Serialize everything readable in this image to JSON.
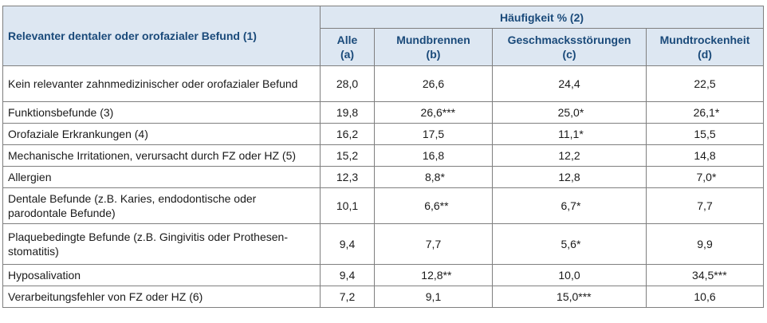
{
  "table": {
    "row_header": "Relevanter dentaler oder orofazialer Befund (1)",
    "group_header": "Häufigkeit % (2)",
    "columns": [
      {
        "name": "Alle",
        "code": "(a)"
      },
      {
        "name": "Mundbrennen",
        "code": "(b)"
      },
      {
        "name": "Geschmacksstörungen",
        "code": "(c)"
      },
      {
        "name": "Mundtrockenheit",
        "code": "(d)"
      }
    ],
    "rows": [
      {
        "label": "Kein relevanter zahnmedizinischer oder orofazialer Befund",
        "values": [
          "28,0",
          "26,6",
          "24,4",
          "22,5"
        ]
      },
      {
        "label": "Funktionsbefunde (3)",
        "values": [
          "19,8",
          "26,6***",
          "25,0*",
          "26,1*"
        ]
      },
      {
        "label": "Orofaziale Erkrankungen (4)",
        "values": [
          "16,2",
          "17,5",
          "11,1*",
          "15,5"
        ]
      },
      {
        "label": "Mechanische Irritationen, verursacht durch FZ oder HZ (5)",
        "values": [
          "15,2",
          "16,8",
          "12,2",
          "14,8"
        ]
      },
      {
        "label": "Allergien",
        "values": [
          "12,3",
          "8,8*",
          "12,8",
          "7,0*"
        ]
      },
      {
        "label": "Dentale Befunde (z.B. Karies, endodontische oder parodontale Befunde)",
        "values": [
          "10,1",
          "6,6**",
          "6,7*",
          "7,7"
        ]
      },
      {
        "label": "Plaquebedingte Befunde (z.B. Gingivitis oder Prothesen-stomatitis)",
        "values": [
          "9,4",
          "7,7",
          "5,6*",
          "9,9"
        ]
      },
      {
        "label": "Hyposalivation",
        "values": [
          "9,4",
          "12,8**",
          "10,0",
          "34,5***"
        ]
      },
      {
        "label": "Verarbeitungsfehler von FZ oder HZ (6)",
        "values": [
          "7,2",
          "9,1",
          "15,0***",
          "10,6"
        ]
      }
    ]
  }
}
